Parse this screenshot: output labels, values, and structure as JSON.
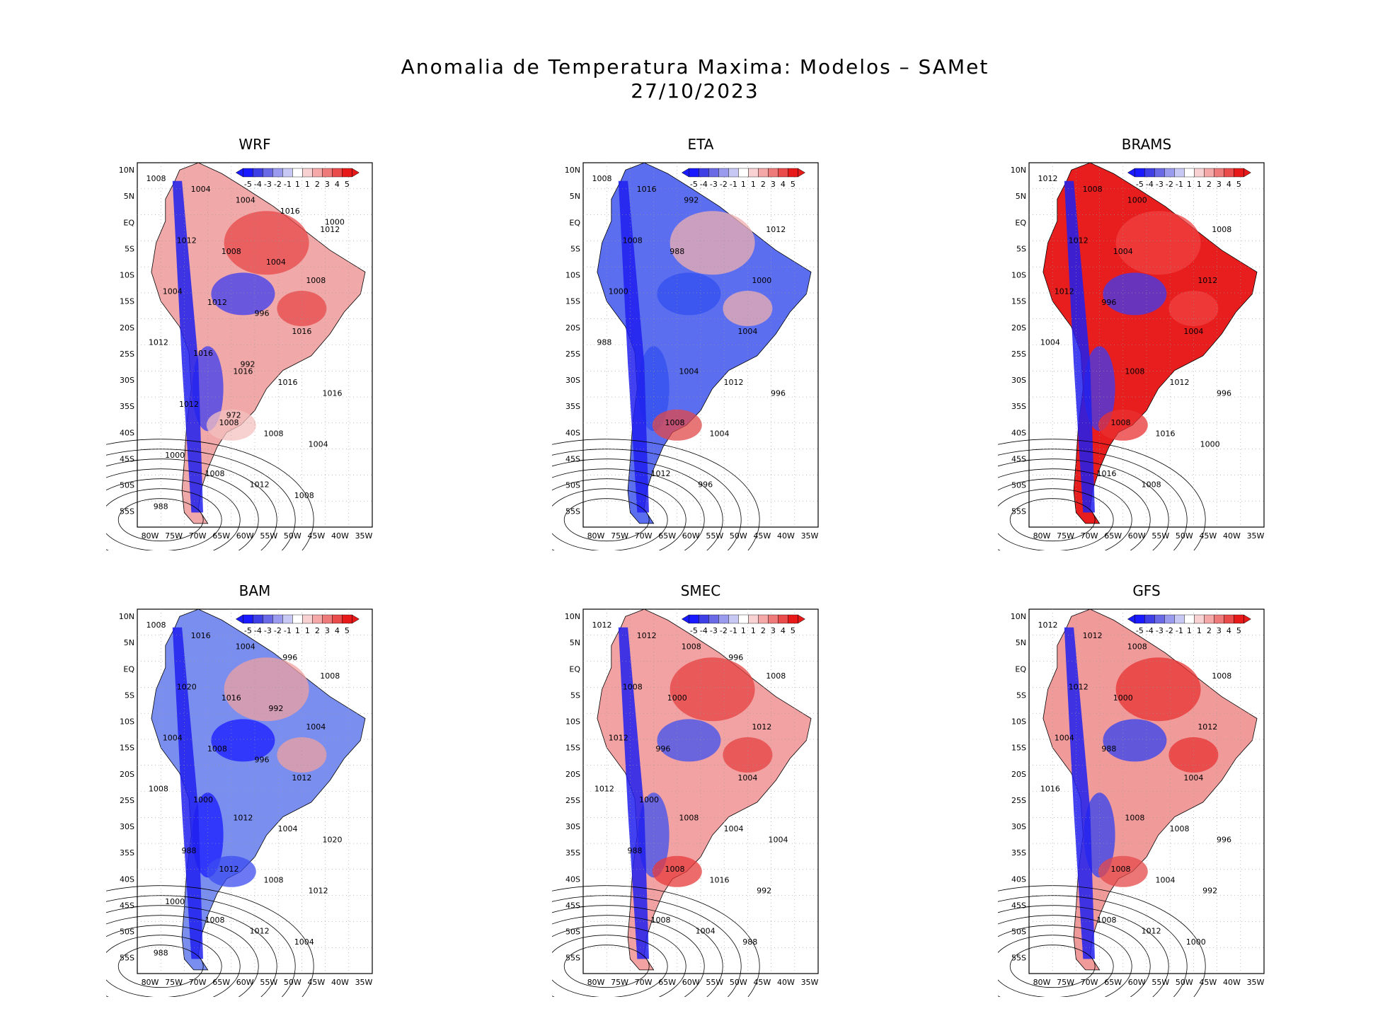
{
  "title": "Anomalia de Temperatura Maxima: Modelos – SAMet",
  "date": "27/10/2023",
  "colorbar": {
    "labels": [
      "-5",
      "-4",
      "-3",
      "-2",
      "-1",
      "1",
      "1",
      "2",
      "3",
      "4",
      "5"
    ],
    "colors": [
      "#1a1aff",
      "#3f3fe6",
      "#6a6ae6",
      "#9a9aef",
      "#c8c8f5",
      "#ffffff",
      "#f8d2d2",
      "#f4a8a8",
      "#ef7a7a",
      "#ea4b4b",
      "#e81919"
    ]
  },
  "lat_labels": [
    "10N",
    "5N",
    "EQ",
    "5S",
    "10S",
    "15S",
    "20S",
    "25S",
    "30S",
    "35S",
    "40S",
    "45S",
    "50S",
    "55S"
  ],
  "lon_labels": [
    "80W",
    "75W",
    "70W",
    "65W",
    "60W",
    "55W",
    "50W",
    "45W",
    "40W",
    "35W"
  ],
  "panels": [
    {
      "name": "WRF",
      "isobars": [
        "1008",
        "1016",
        "1012",
        "1008",
        "1008",
        "1008",
        "1016",
        "1004",
        "1016",
        "1012",
        "1008",
        "1004",
        "1012",
        "1012",
        "1004",
        "1016",
        "1008",
        "1004",
        "1012",
        "1008",
        "1016",
        "1016",
        "1012",
        "1004",
        "1000",
        "996",
        "988",
        "992",
        "1000",
        "972"
      ]
    },
    {
      "name": "ETA",
      "isobars": [
        "1008",
        "1004",
        "1012",
        "1008",
        "1000",
        "1012",
        "1004",
        "1016",
        "1012",
        "1008",
        "1004",
        "1000",
        "996",
        "988",
        "992",
        "996",
        "988"
      ]
    },
    {
      "name": "BRAMS",
      "isobars": [
        "1012",
        "1008",
        "1008",
        "1008",
        "1012",
        "1016",
        "1004",
        "1008",
        "1012",
        "1012",
        "1016",
        "1012",
        "1008",
        "1004",
        "1000",
        "996",
        "1004",
        "1000",
        "996"
      ]
    },
    {
      "name": "BAM",
      "isobars": [
        "1008",
        "1012",
        "1008",
        "1012",
        "1004",
        "1008",
        "1012",
        "1016",
        "1004",
        "1020",
        "1008",
        "1004",
        "1012",
        "1008",
        "1004",
        "1020",
        "1016",
        "1012",
        "1008",
        "1004",
        "1000",
        "996",
        "988",
        "992",
        "1000",
        "996",
        "988"
      ]
    },
    {
      "name": "SMEC",
      "isobars": [
        "1012",
        "1008",
        "1008",
        "1008",
        "1012",
        "1008",
        "1004",
        "1012",
        "1004",
        "1008",
        "1016",
        "1012",
        "1004",
        "1012",
        "1008",
        "1004",
        "1000",
        "992",
        "996",
        "988",
        "1000",
        "996",
        "988"
      ]
    },
    {
      "name": "GFS",
      "isobars": [
        "1012",
        "1008",
        "1008",
        "1008",
        "1012",
        "1008",
        "1004",
        "1012",
        "1008",
        "1012",
        "1004",
        "1004",
        "1012",
        "1016",
        "1008",
        "996",
        "1000",
        "992",
        "988",
        "1000"
      ]
    }
  ]
}
